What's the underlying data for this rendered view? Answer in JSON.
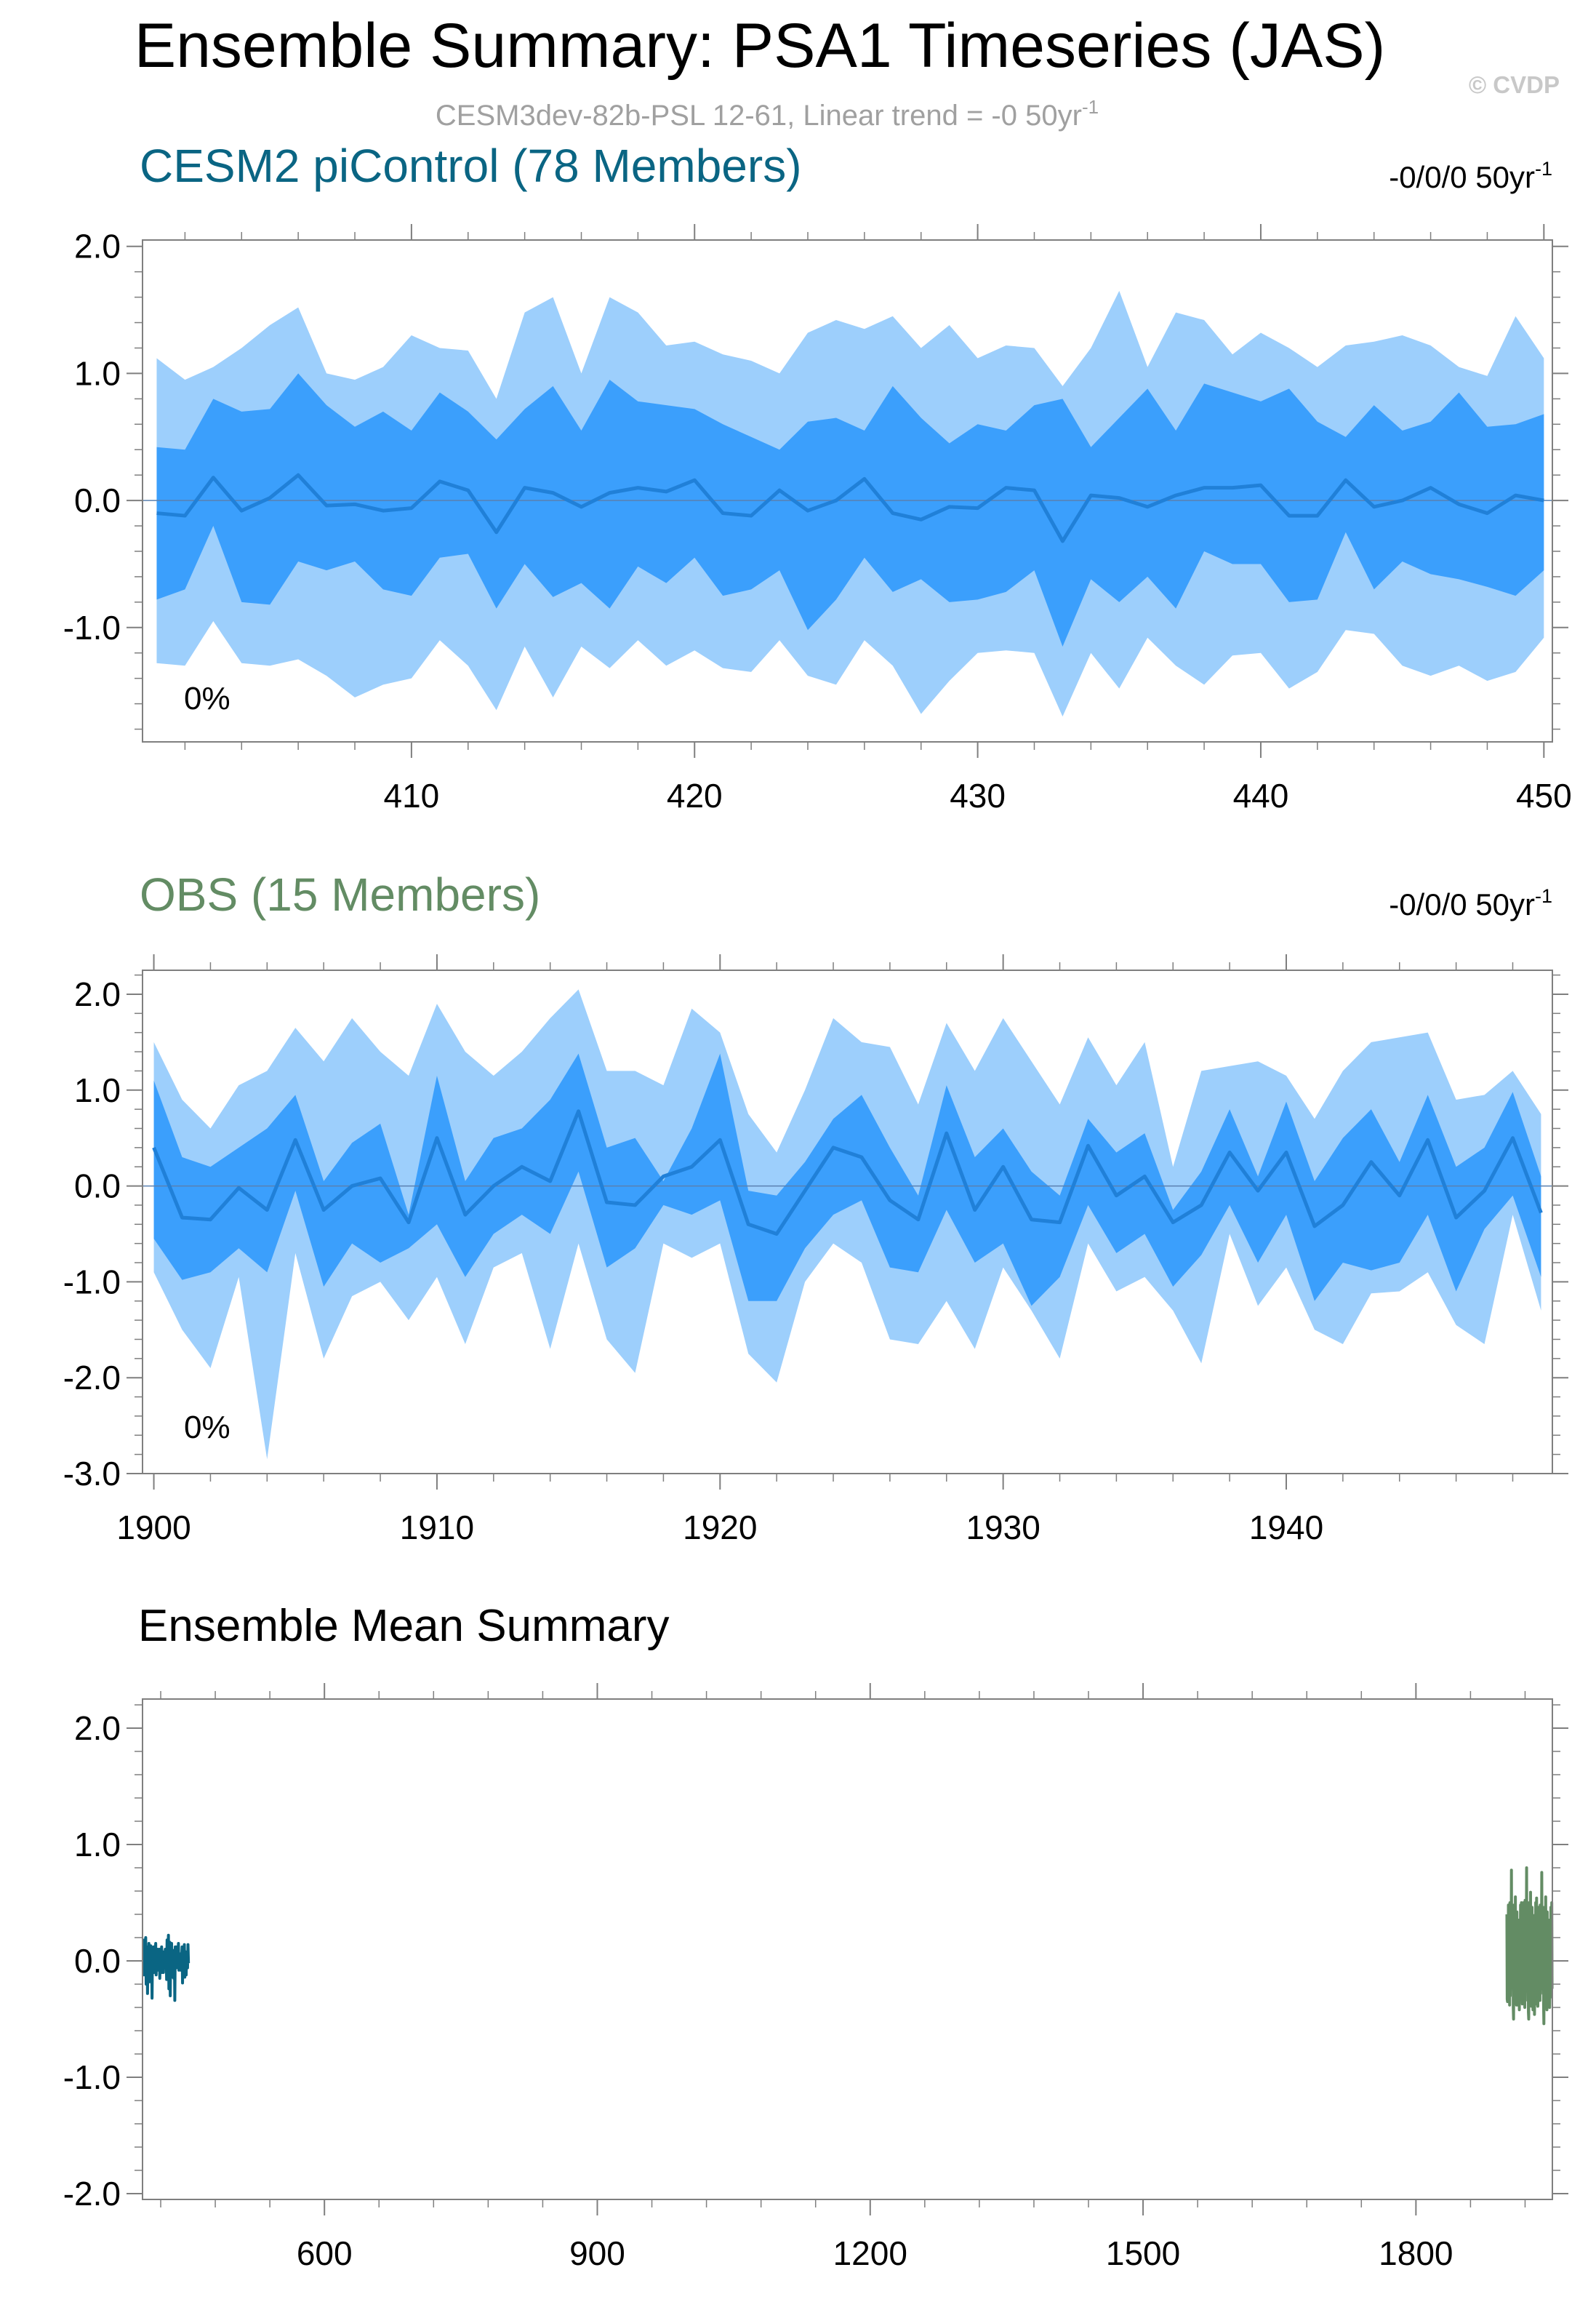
{
  "title": "Ensemble Summary: PSA1 Timeseries (JAS)",
  "watermark": "© CVDP",
  "subtitle_base": "CESM3dev-82b-PSL 12-61, Linear trend = -0 50yr",
  "subtitle_sup": "-1",
  "colors": {
    "band_outer": "#9dcffc",
    "band_inner": "#3b9ffc",
    "mean_line": "#2080d8",
    "cesm": "#0a6583",
    "obs": "#638c64",
    "subtitle": "#a0a0a0"
  },
  "chart_data": [
    {
      "type": "area",
      "title": "CESM2 piControl (78 Members)",
      "trend_label": "-0/0/0 50yr",
      "trend_sup": "-1",
      "inset_label": "0%",
      "xlim": [
        400.5,
        450.3
      ],
      "ylim": [
        -1.9,
        2.05
      ],
      "yticks": [
        2.0,
        1.0,
        0.0,
        -1.0
      ],
      "ytick_labels": [
        "2.0",
        "1.0",
        "0.0",
        "-1.0"
      ],
      "xticks": [
        410,
        420,
        430,
        440,
        450
      ],
      "xtick_labels": [
        "410",
        "420",
        "430",
        "440",
        "450"
      ],
      "x": [
        401,
        402,
        403,
        404,
        405,
        406,
        407,
        408,
        409,
        410,
        411,
        412,
        413,
        414,
        415,
        416,
        417,
        418,
        419,
        420,
        421,
        422,
        423,
        424,
        425,
        426,
        427,
        428,
        429,
        430,
        431,
        432,
        433,
        434,
        435,
        436,
        437,
        438,
        439,
        440,
        441,
        442,
        443,
        444,
        445,
        446,
        447,
        448,
        449,
        450
      ],
      "p90": [
        1.12,
        0.95,
        1.05,
        1.2,
        1.38,
        1.52,
        1.0,
        0.95,
        1.05,
        1.3,
        1.2,
        1.18,
        0.8,
        1.48,
        1.6,
        1.0,
        1.6,
        1.48,
        1.22,
        1.25,
        1.15,
        1.1,
        1.0,
        1.32,
        1.42,
        1.35,
        1.45,
        1.2,
        1.38,
        1.12,
        1.22,
        1.2,
        0.9,
        1.2,
        1.65,
        1.05,
        1.48,
        1.42,
        1.15,
        1.32,
        1.2,
        1.05,
        1.22,
        1.25,
        1.3,
        1.22,
        1.05,
        0.98,
        1.45,
        1.12
      ],
      "p70": [
        0.42,
        0.4,
        0.8,
        0.7,
        0.72,
        1.0,
        0.75,
        0.58,
        0.7,
        0.55,
        0.85,
        0.7,
        0.48,
        0.72,
        0.9,
        0.55,
        0.95,
        0.78,
        0.75,
        0.72,
        0.6,
        0.5,
        0.4,
        0.62,
        0.65,
        0.55,
        0.9,
        0.65,
        0.45,
        0.6,
        0.55,
        0.75,
        0.8,
        0.42,
        0.65,
        0.88,
        0.55,
        0.92,
        0.85,
        0.78,
        0.88,
        0.62,
        0.5,
        0.75,
        0.55,
        0.62,
        0.85,
        0.58,
        0.6,
        0.68
      ],
      "mean": [
        -0.1,
        -0.12,
        0.18,
        -0.08,
        0.02,
        0.2,
        -0.04,
        -0.03,
        -0.08,
        -0.06,
        0.15,
        0.08,
        -0.25,
        0.1,
        0.06,
        -0.05,
        0.06,
        0.1,
        0.07,
        0.16,
        -0.1,
        -0.12,
        0.08,
        -0.08,
        0.0,
        0.17,
        -0.1,
        -0.15,
        -0.05,
        -0.06,
        0.1,
        0.08,
        -0.32,
        0.04,
        0.02,
        -0.05,
        0.04,
        0.1,
        0.1,
        0.12,
        -0.12,
        -0.12,
        0.16,
        -0.05,
        0.0,
        0.1,
        -0.03,
        -0.1,
        0.04,
        0.0
      ],
      "p30": [
        -0.78,
        -0.7,
        -0.2,
        -0.8,
        -0.82,
        -0.48,
        -0.55,
        -0.48,
        -0.7,
        -0.75,
        -0.45,
        -0.42,
        -0.85,
        -0.5,
        -0.76,
        -0.65,
        -0.85,
        -0.52,
        -0.65,
        -0.45,
        -0.75,
        -0.7,
        -0.55,
        -1.02,
        -0.78,
        -0.45,
        -0.72,
        -0.62,
        -0.8,
        -0.78,
        -0.72,
        -0.55,
        -1.15,
        -0.62,
        -0.8,
        -0.6,
        -0.85,
        -0.4,
        -0.5,
        -0.5,
        -0.8,
        -0.78,
        -0.25,
        -0.7,
        -0.48,
        -0.58,
        -0.62,
        -0.68,
        -0.75,
        -0.55
      ],
      "p10": [
        -1.28,
        -1.3,
        -0.95,
        -1.28,
        -1.3,
        -1.25,
        -1.38,
        -1.55,
        -1.45,
        -1.4,
        -1.1,
        -1.3,
        -1.65,
        -1.15,
        -1.55,
        -1.15,
        -1.32,
        -1.1,
        -1.3,
        -1.18,
        -1.32,
        -1.35,
        -1.1,
        -1.38,
        -1.45,
        -1.1,
        -1.3,
        -1.68,
        -1.42,
        -1.2,
        -1.18,
        -1.2,
        -1.7,
        -1.2,
        -1.48,
        -1.08,
        -1.3,
        -1.45,
        -1.22,
        -1.2,
        -1.48,
        -1.35,
        -1.02,
        -1.05,
        -1.3,
        -1.38,
        -1.3,
        -1.42,
        -1.35,
        -1.08
      ]
    },
    {
      "type": "area",
      "title": "OBS (15 Members)",
      "trend_label": "-0/0/0 50yr",
      "trend_sup": "-1",
      "inset_label": "0%",
      "xlim": [
        1899.6,
        1949.4
      ],
      "ylim": [
        -3.0,
        2.25
      ],
      "yticks": [
        2.0,
        1.0,
        0.0,
        -1.0,
        -2.0,
        -3.0
      ],
      "ytick_labels": [
        "2.0",
        "1.0",
        "0.0",
        "-1.0",
        "-2.0",
        "-3.0"
      ],
      "xticks": [
        1900,
        1910,
        1920,
        1930,
        1940
      ],
      "xtick_labels": [
        "1900",
        "1910",
        "1920",
        "1930",
        "1940"
      ],
      "x": [
        1900,
        1901,
        1902,
        1903,
        1904,
        1905,
        1906,
        1907,
        1908,
        1909,
        1910,
        1911,
        1912,
        1913,
        1914,
        1915,
        1916,
        1917,
        1918,
        1919,
        1920,
        1921,
        1922,
        1923,
        1924,
        1925,
        1926,
        1927,
        1928,
        1929,
        1930,
        1931,
        1932,
        1933,
        1934,
        1935,
        1936,
        1937,
        1938,
        1939,
        1940,
        1941,
        1942,
        1943,
        1944,
        1945,
        1946,
        1947,
        1948,
        1949
      ],
      "p90": [
        1.5,
        0.9,
        0.6,
        1.05,
        1.2,
        1.65,
        1.3,
        1.75,
        1.4,
        1.15,
        1.9,
        1.4,
        1.15,
        1.4,
        1.75,
        2.05,
        1.2,
        1.2,
        1.05,
        1.85,
        1.6,
        0.75,
        0.35,
        1.0,
        1.75,
        1.5,
        1.45,
        0.85,
        1.7,
        1.2,
        1.75,
        1.3,
        0.85,
        1.55,
        1.05,
        1.5,
        0.2,
        1.2,
        1.25,
        1.3,
        1.15,
        0.7,
        1.2,
        1.5,
        1.55,
        1.6,
        0.9,
        0.95,
        1.2,
        0.75
      ],
      "p70": [
        1.1,
        0.3,
        0.2,
        0.4,
        0.6,
        0.95,
        0.05,
        0.45,
        0.65,
        -0.3,
        1.15,
        0.05,
        0.5,
        0.6,
        0.9,
        1.38,
        0.4,
        0.5,
        0.05,
        0.6,
        1.38,
        -0.05,
        -0.1,
        0.25,
        0.7,
        0.95,
        0.4,
        -0.1,
        1.05,
        0.3,
        0.6,
        0.15,
        -0.1,
        0.7,
        0.35,
        0.55,
        -0.25,
        0.15,
        0.8,
        0.1,
        0.88,
        0.05,
        0.5,
        0.8,
        0.25,
        0.95,
        0.2,
        0.4,
        0.98,
        0.1
      ],
      "mean": [
        0.4,
        -0.33,
        -0.35,
        -0.02,
        -0.25,
        0.48,
        -0.25,
        0.0,
        0.08,
        -0.38,
        0.5,
        -0.3,
        0.0,
        0.2,
        0.05,
        0.78,
        -0.17,
        -0.2,
        0.1,
        0.2,
        0.48,
        -0.4,
        -0.5,
        -0.05,
        0.4,
        0.3,
        -0.15,
        -0.35,
        0.55,
        -0.25,
        0.2,
        -0.35,
        -0.38,
        0.42,
        -0.1,
        0.1,
        -0.38,
        -0.2,
        0.35,
        -0.05,
        0.35,
        -0.42,
        -0.2,
        0.25,
        -0.1,
        0.48,
        -0.33,
        -0.05,
        0.5,
        -0.28
      ],
      "p30": [
        -0.55,
        -0.98,
        -0.9,
        -0.65,
        -0.9,
        -0.05,
        -1.05,
        -0.6,
        -0.8,
        -0.65,
        -0.4,
        -0.95,
        -0.5,
        -0.3,
        -0.5,
        0.15,
        -0.85,
        -0.65,
        -0.2,
        -0.3,
        -0.15,
        -1.2,
        -1.2,
        -0.65,
        -0.3,
        -0.15,
        -0.85,
        -0.9,
        -0.25,
        -0.8,
        -0.6,
        -1.25,
        -0.95,
        -0.2,
        -0.7,
        -0.5,
        -1.05,
        -0.72,
        -0.2,
        -0.8,
        -0.3,
        -1.2,
        -0.8,
        -0.88,
        -0.8,
        -0.3,
        -1.1,
        -0.45,
        -0.1,
        -0.95
      ],
      "p10": [
        -0.9,
        -1.5,
        -1.9,
        -0.95,
        -2.85,
        -0.7,
        -1.8,
        -1.15,
        -1.0,
        -1.4,
        -0.95,
        -1.65,
        -0.85,
        -0.7,
        -1.7,
        -0.6,
        -1.6,
        -1.95,
        -0.6,
        -0.75,
        -0.6,
        -1.75,
        -2.05,
        -1.0,
        -0.6,
        -0.8,
        -1.6,
        -1.65,
        -1.2,
        -1.7,
        -0.85,
        -1.3,
        -1.8,
        -0.6,
        -1.1,
        -0.95,
        -1.3,
        -1.85,
        -0.5,
        -1.25,
        -0.85,
        -1.5,
        -1.65,
        -1.12,
        -1.1,
        -0.9,
        -1.45,
        -1.65,
        -0.3,
        -1.3
      ]
    },
    {
      "type": "line",
      "title": "Ensemble Mean Summary",
      "xlim": [
        400,
        1950
      ],
      "ylim": [
        -2.05,
        2.25
      ],
      "yticks": [
        2.0,
        1.0,
        0.0,
        -1.0,
        -2.0
      ],
      "ytick_labels": [
        "2.0",
        "1.0",
        "0.0",
        "-1.0",
        "-2.0"
      ],
      "xticks": [
        600,
        900,
        1200,
        1500,
        1800
      ],
      "xtick_labels": [
        "600",
        "900",
        "1200",
        "1500",
        "1800"
      ],
      "series": [
        {
          "name": "CESM2 piControl",
          "color": "#0a6583",
          "start": 401,
          "cycles": 2,
          "values": [
            0.05,
            -0.12,
            0.18,
            -0.1,
            0.1,
            0.2,
            -0.2,
            0.05,
            0.12,
            -0.28,
            0.1,
            -0.05,
            0.15,
            -0.18,
            0.08,
            0.02,
            0.13,
            -0.15,
            0.05,
            -0.32,
            0.1,
            0.0,
            0.12,
            -0.1,
            0.05,
            -0.05,
            0.08,
            0.15,
            -0.12,
            0.03,
            0.0,
            0.1,
            -0.08,
            -0.02,
            0.05,
            0.1,
            -0.15,
            0.06,
            0.0,
            -0.05,
            0.12,
            -0.1,
            0.08,
            0.0,
            -0.1,
            0.05,
            0.02,
            -0.06,
            0.1,
            0.0
          ]
        },
        {
          "name": "OBS",
          "color": "#638c64",
          "start": 1900,
          "cycles": 3,
          "values": [
            0.4,
            -0.33,
            -0.35,
            -0.02,
            -0.25,
            0.48,
            -0.25,
            0.0,
            0.08,
            -0.38,
            0.5,
            -0.3,
            0.0,
            0.2,
            0.05,
            0.78,
            -0.17,
            -0.2,
            0.1,
            0.2,
            0.48,
            -0.4,
            -0.5,
            -0.05,
            0.4,
            0.3,
            -0.15,
            -0.35,
            0.55,
            -0.25,
            0.2,
            -0.35,
            -0.38,
            0.42,
            -0.1,
            0.1,
            -0.38,
            -0.2,
            0.35,
            -0.05,
            0.35,
            -0.42,
            -0.2,
            0.25,
            -0.1,
            0.48,
            -0.33,
            -0.05,
            0.5,
            -0.28
          ]
        }
      ]
    }
  ]
}
